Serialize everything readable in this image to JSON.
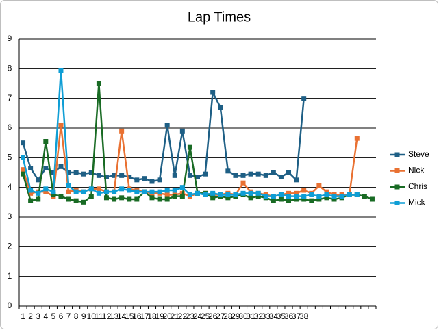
{
  "chart_data": {
    "type": "line",
    "title": "Lap Times",
    "categories": [
      1,
      2,
      3,
      4,
      5,
      6,
      7,
      8,
      9,
      10,
      11,
      12,
      13,
      14,
      15,
      16,
      17,
      18,
      19,
      20,
      21,
      22,
      23,
      24,
      25,
      26,
      27,
      28,
      29,
      30,
      31,
      32,
      33,
      34,
      35,
      36,
      37,
      38,
      null,
      null,
      null,
      null,
      null,
      null,
      null,
      null,
      null
    ],
    "series": [
      {
        "name": "Steve",
        "color": "#1e5f85",
        "values": [
          5.5,
          4.65,
          4.25,
          4.65,
          4.5,
          4.7,
          4.5,
          4.5,
          4.45,
          4.5,
          4.4,
          4.35,
          4.4,
          4.4,
          4.35,
          4.25,
          4.3,
          4.2,
          4.25,
          6.1,
          4.4,
          5.9,
          4.4,
          4.35,
          4.45,
          7.2,
          6.7,
          4.55,
          4.4,
          4.4,
          4.45,
          4.45,
          4.4,
          4.5,
          4.35,
          4.5,
          4.25,
          7.0,
          null,
          null,
          null,
          null,
          null,
          null,
          null,
          null,
          null
        ]
      },
      {
        "name": "Nick",
        "color": "#e97132",
        "values": [
          4.6,
          3.8,
          3.85,
          3.85,
          3.7,
          6.1,
          3.85,
          3.9,
          3.85,
          3.95,
          3.95,
          3.85,
          3.85,
          5.9,
          3.95,
          3.9,
          3.85,
          3.8,
          3.8,
          3.75,
          3.75,
          3.8,
          3.7,
          3.8,
          3.8,
          3.75,
          3.75,
          3.8,
          3.75,
          4.15,
          3.85,
          3.8,
          3.75,
          3.7,
          3.75,
          3.8,
          3.8,
          3.9,
          3.8,
          4.05,
          3.85,
          3.75,
          3.75,
          3.75,
          5.65,
          null,
          null
        ]
      },
      {
        "name": "Chris",
        "color": "#196b24",
        "values": [
          4.45,
          3.55,
          3.6,
          5.55,
          3.75,
          3.7,
          3.6,
          3.55,
          3.5,
          3.7,
          7.5,
          3.65,
          3.6,
          3.65,
          3.6,
          3.6,
          3.85,
          3.65,
          3.6,
          3.6,
          3.7,
          3.7,
          5.35,
          3.8,
          3.8,
          3.65,
          3.7,
          3.65,
          3.7,
          3.75,
          3.65,
          3.7,
          3.65,
          3.55,
          3.6,
          3.55,
          3.6,
          3.6,
          3.55,
          3.6,
          3.65,
          3.6,
          3.65,
          3.75,
          3.75,
          3.7,
          3.6
        ]
      },
      {
        "name": "Mick",
        "color": "#0f9ed5",
        "values": [
          5.0,
          3.9,
          3.8,
          3.95,
          3.85,
          7.95,
          4.05,
          3.85,
          3.85,
          3.95,
          3.8,
          3.85,
          3.85,
          3.95,
          3.9,
          3.85,
          3.85,
          3.85,
          3.85,
          3.9,
          3.9,
          4.0,
          3.75,
          3.8,
          3.75,
          3.8,
          3.75,
          3.75,
          3.75,
          3.8,
          3.8,
          3.8,
          3.7,
          3.7,
          3.75,
          3.7,
          3.7,
          3.7,
          3.75,
          3.7,
          3.75,
          3.7,
          3.7,
          3.75,
          3.75,
          null,
          null
        ]
      }
    ],
    "ylim": [
      0,
      9
    ],
    "yticks": [
      0,
      1,
      2,
      3,
      4,
      5,
      6,
      7,
      8,
      9
    ],
    "grid": true,
    "legend": "right"
  }
}
